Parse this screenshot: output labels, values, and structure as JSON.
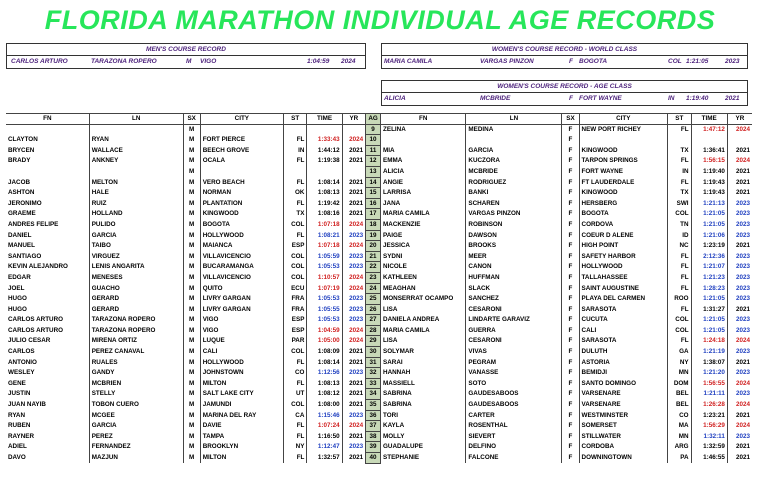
{
  "title": "FLORIDA MARATHON INDIVIDUAL AGE RECORDS",
  "mens_course_record": {
    "header": "MEN'S COURSE RECORD",
    "fn": "CARLOS ARTURO",
    "ln": "TARAZONA ROPERO",
    "sx": "M",
    "city": "VIGO",
    "time": "1:04:59",
    "yr": "2024"
  },
  "womens_world_class": {
    "header": "WOMEN'S COURSE RECORD - WORLD CLASS",
    "fn": "MARIA CAMILA",
    "ln": "VARGAS PINZON",
    "sx": "F",
    "city": "BOGOTA",
    "st": "COL",
    "time": "1:21:05",
    "yr": "2023"
  },
  "womens_age_class": {
    "header": "WOMEN'S COURSE RECORD - AGE CLASS",
    "fn": "ALICIA",
    "ln": "MCBRIDE",
    "sx": "F",
    "city": "FORT WAYNE",
    "st": "IN",
    "time": "1:19:40",
    "yr": "2021"
  },
  "columns": {
    "fn": "FN",
    "ln": "LN",
    "sx": "SX",
    "city": "CITY",
    "st": "ST",
    "time": "TIME",
    "yr": "YR",
    "ag": "AG"
  },
  "colors": {
    "title": "#27e65a",
    "header_text": "#4a1f7a",
    "age_cell": "#c8d9b8",
    "red": "#d02020",
    "blue": "#2040c0"
  },
  "rows": [
    {
      "m": [
        "",
        "",
        "M",
        "",
        "",
        "",
        "",
        ""
      ],
      "ag": "9",
      "w": [
        "ZELINA",
        "MEDINA",
        "F",
        "NEW PORT RICHEY",
        "FL",
        "1:47:12",
        "2024",
        "r"
      ]
    },
    {
      "m": [
        "CLAYTON",
        "RYAN",
        "M",
        "FORT PIERCE",
        "FL",
        "1:33:43",
        "2024",
        "r"
      ],
      "ag": "10",
      "w": [
        "",
        "",
        "F",
        "",
        "",
        "",
        "",
        ""
      ]
    },
    {
      "m": [
        "BRYCEN",
        "WALLACE",
        "M",
        "BEECH GROVE",
        "IN",
        "1:44:12",
        "2021",
        ""
      ],
      "ag": "11",
      "w": [
        "MIA",
        "GARCIA",
        "F",
        "KINGWOOD",
        "TX",
        "1:36:41",
        "2021",
        ""
      ]
    },
    {
      "m": [
        "BRADY",
        "ANKNEY",
        "M",
        "OCALA",
        "FL",
        "1:19:38",
        "2021",
        ""
      ],
      "ag": "12",
      "w": [
        "EMMA",
        "KUCZORA",
        "F",
        "TARPON SPRINGS",
        "FL",
        "1:56:15",
        "2024",
        "r"
      ]
    },
    {
      "m": [
        "",
        "",
        "M",
        "",
        "",
        "",
        "",
        ""
      ],
      "ag": "13",
      "w": [
        "ALICIA",
        "MCBRIDE",
        "F",
        "FORT WAYNE",
        "IN",
        "1:19:40",
        "2021",
        ""
      ]
    },
    {
      "m": [
        "JACOB",
        "MELTON",
        "M",
        "VERO BEACH",
        "FL",
        "1:08:14",
        "2021",
        ""
      ],
      "ag": "14",
      "w": [
        "ANGIE",
        "RODRIGUEZ",
        "F",
        "FT LAUDERDALE",
        "FL",
        "1:19:43",
        "2021",
        ""
      ]
    },
    {
      "m": [
        "ASHTON",
        "HALE",
        "M",
        "NORMAN",
        "OK",
        "1:08:13",
        "2021",
        ""
      ],
      "ag": "15",
      "w": [
        "LARRISA",
        "BANKI",
        "F",
        "KINGWOOD",
        "TX",
        "1:19:43",
        "2021",
        ""
      ]
    },
    {
      "m": [
        "JERONIMO",
        "RUIZ",
        "M",
        "PLANTATION",
        "FL",
        "1:19:42",
        "2021",
        ""
      ],
      "ag": "16",
      "w": [
        "JANA",
        "SCHAREN",
        "F",
        "HERSBERG",
        "SWI",
        "1:21:13",
        "2023",
        "b"
      ]
    },
    {
      "m": [
        "GRAEME",
        "HOLLAND",
        "M",
        "KINGWOOD",
        "TX",
        "1:08:16",
        "2021",
        ""
      ],
      "ag": "17",
      "w": [
        "MARIA CAMILA",
        "VARGAS PINZON",
        "F",
        "BOGOTA",
        "COL",
        "1:21:05",
        "2023",
        "b"
      ]
    },
    {
      "m": [
        "ANDRES FELIPE",
        "PULIDO",
        "M",
        "BOGOTA",
        "COL",
        "1:07:18",
        "2024",
        "r"
      ],
      "ag": "18",
      "w": [
        "MACKENZIE",
        "ROBINSON",
        "F",
        "CORDOVA",
        "TN",
        "1:21:05",
        "2023",
        "b"
      ]
    },
    {
      "m": [
        "DANIEL",
        "GARCIA",
        "M",
        "HOLLYWOOD",
        "FL",
        "1:08:21",
        "2023",
        "b"
      ],
      "ag": "19",
      "w": [
        "PAIGE",
        "DAWSON",
        "F",
        "COEUR D ALENE",
        "ID",
        "1:21:06",
        "2023",
        "b"
      ]
    },
    {
      "m": [
        "MANUEL",
        "TAIBO",
        "M",
        "MAIANCA",
        "ESP",
        "1:07:18",
        "2024",
        "r"
      ],
      "ag": "20",
      "w": [
        "JESSICA",
        "BROOKS",
        "F",
        "HIGH POINT",
        "NC",
        "1:23:19",
        "2021",
        ""
      ]
    },
    {
      "m": [
        "SANTIAGO",
        "VIRGUEZ",
        "M",
        "VILLAVICENCIO",
        "COL",
        "1:05:59",
        "2023",
        "b"
      ],
      "ag": "21",
      "w": [
        "SYDNI",
        "MEER",
        "F",
        "SAFETY HARBOR",
        "FL",
        "2:12:36",
        "2023",
        "b"
      ]
    },
    {
      "m": [
        "KEVIN ALEJANDRO",
        "LENIS ANGARITA",
        "M",
        "BUCARAMANGA",
        "COL",
        "1:05:53",
        "2023",
        "b"
      ],
      "ag": "22",
      "w": [
        "NICOLE",
        "CANON",
        "F",
        "HOLLYWOOD",
        "FL",
        "1:21:07",
        "2023",
        "b"
      ]
    },
    {
      "m": [
        "EDGAR",
        "MENESES",
        "M",
        "VILLAVICENCIO",
        "COL",
        "1:10:57",
        "2024",
        "r"
      ],
      "ag": "23",
      "w": [
        "KATHLEEN",
        "HUFFMAN",
        "F",
        "TALLAHASSEE",
        "FL",
        "1:21:23",
        "2023",
        "b"
      ]
    },
    {
      "m": [
        "JOEL",
        "GUACHO",
        "M",
        "QUITO",
        "ECU",
        "1:07:19",
        "2024",
        "r"
      ],
      "ag": "24",
      "w": [
        "MEAGHAN",
        "SLACK",
        "F",
        "SAINT AUGUSTINE",
        "FL",
        "1:28:23",
        "2023",
        "b"
      ]
    },
    {
      "m": [
        "HUGO",
        "GERARD",
        "M",
        "LIVRY GARGAN",
        "FRA",
        "1:05:53",
        "2023",
        "b"
      ],
      "ag": "25",
      "w": [
        "MONSERRAT OCAMPO",
        "SANCHEZ",
        "F",
        "PLAYA DEL CARMEN",
        "ROO",
        "1:21:05",
        "2023",
        "b"
      ]
    },
    {
      "m": [
        "HUGO",
        "GERARD",
        "M",
        "LIVRY GARGAN",
        "FRA",
        "1:05:55",
        "2023",
        "b"
      ],
      "ag": "26",
      "w": [
        "LISA",
        "CESARONI",
        "F",
        "SARASOTA",
        "FL",
        "1:31:27",
        "2021",
        ""
      ]
    },
    {
      "m": [
        "CARLOS ARTURO",
        "TARAZONA ROPERO",
        "M",
        "VIGO",
        "ESP",
        "1:05:53",
        "2023",
        "b"
      ],
      "ag": "27",
      "w": [
        "DANIELA ANDREA",
        "LINDARTE GARAVIZ",
        "F",
        "CUCUTA",
        "COL",
        "1:21:05",
        "2023",
        "b"
      ]
    },
    {
      "m": [
        "CARLOS ARTURO",
        "TARAZONA ROPERO",
        "M",
        "VIGO",
        "ESP",
        "1:04:59",
        "2024",
        "r"
      ],
      "ag": "28",
      "w": [
        "MARIA CAMILA",
        "GUERRA",
        "F",
        "CALI",
        "COL",
        "1:21:05",
        "2023",
        "b"
      ]
    },
    {
      "m": [
        "JULIO CESAR",
        "MIRENA ORTIZ",
        "M",
        "LUQUE",
        "PAR",
        "1:05:00",
        "2024",
        "r"
      ],
      "ag": "29",
      "w": [
        "LISA",
        "CESARONI",
        "F",
        "SARASOTA",
        "FL",
        "1:24:18",
        "2024",
        "r"
      ]
    },
    {
      "m": [
        "CARLOS",
        "PEREZ CANAVAL",
        "M",
        "CALI",
        "COL",
        "1:08:09",
        "2021",
        ""
      ],
      "ag": "30",
      "w": [
        "SOLYMAR",
        "VIVAS",
        "F",
        "DULUTH",
        "GA",
        "1:21:19",
        "2023",
        "b"
      ]
    },
    {
      "m": [
        "ANTONIO",
        "RUALES",
        "M",
        "HOLLYWOOD",
        "FL",
        "1:08:14",
        "2021",
        ""
      ],
      "ag": "31",
      "w": [
        "SARAI",
        "PEGRAM",
        "F",
        "ASTORIA",
        "NY",
        "1:38:07",
        "2021",
        ""
      ]
    },
    {
      "m": [
        "WESLEY",
        "GANDY",
        "M",
        "JOHNSTOWN",
        "CO",
        "1:12:56",
        "2023",
        "b"
      ],
      "ag": "32",
      "w": [
        "HANNAH",
        "VANASSE",
        "F",
        "BEMIDJI",
        "MN",
        "1:21:20",
        "2023",
        "b"
      ]
    },
    {
      "m": [
        "GENE",
        "MCBRIEN",
        "M",
        "MILTON",
        "FL",
        "1:08:13",
        "2021",
        ""
      ],
      "ag": "33",
      "w": [
        "MASSIELL",
        "SOTO",
        "F",
        "SANTO DOMINGO",
        "DOM",
        "1:56:55",
        "2024",
        "r"
      ]
    },
    {
      "m": [
        "JUSTIN",
        "STELLY",
        "M",
        "SALT LAKE CITY",
        "UT",
        "1:08:12",
        "2021",
        ""
      ],
      "ag": "34",
      "w": [
        "SABRINA",
        "GAUDESABOOS",
        "F",
        "VARSENARE",
        "BEL",
        "1:21:11",
        "2023",
        "b"
      ]
    },
    {
      "m": [
        "JUAN NAYIB",
        "TOBON CUERO",
        "M",
        "JAMUNDI",
        "COL",
        "1:08:00",
        "2021",
        ""
      ],
      "ag": "35",
      "w": [
        "SABRINA",
        "GAUDESABOOS",
        "F",
        "VARSENARE",
        "BEL",
        "1:26:28",
        "2024",
        "r"
      ]
    },
    {
      "m": [
        "RYAN",
        "MCGEE",
        "M",
        "MARINA DEL RAY",
        "CA",
        "1:15:46",
        "2023",
        "b"
      ],
      "ag": "36",
      "w": [
        "TORI",
        "CARTER",
        "F",
        "WESTMINSTER",
        "CO",
        "1:23:21",
        "2021",
        ""
      ]
    },
    {
      "m": [
        "RUBEN",
        "GARCIA",
        "M",
        "DAVIE",
        "FL",
        "1:07:24",
        "2024",
        "r"
      ],
      "ag": "37",
      "w": [
        "KAYLA",
        "ROSENTHAL",
        "F",
        "SOMERSET",
        "MA",
        "1:56:29",
        "2024",
        "r"
      ]
    },
    {
      "m": [
        "RAYNER",
        "PEREZ",
        "M",
        "TAMPA",
        "FL",
        "1:16:50",
        "2021",
        ""
      ],
      "ag": "38",
      "w": [
        "MOLLY",
        "SIEVERT",
        "F",
        "STILLWATER",
        "MN",
        "1:32:11",
        "2023",
        "b"
      ]
    },
    {
      "m": [
        "ADIEL",
        "FERNANDEZ",
        "M",
        "BROOKLYN",
        "NY",
        "1:12:47",
        "2023",
        "b"
      ],
      "ag": "39",
      "w": [
        "GUADALUPE",
        "DELFINO",
        "F",
        "CORDOBA",
        "ARG",
        "1:32:59",
        "2021",
        ""
      ]
    },
    {
      "m": [
        "DAVO",
        "MAZJUN",
        "M",
        "MILTON",
        "FL",
        "1:32:57",
        "2021",
        ""
      ],
      "ag": "40",
      "w": [
        "STEPHANIE",
        "FALCONE",
        "F",
        "DOWNINGTOWN",
        "PA",
        "1:46:55",
        "2021",
        ""
      ]
    }
  ]
}
